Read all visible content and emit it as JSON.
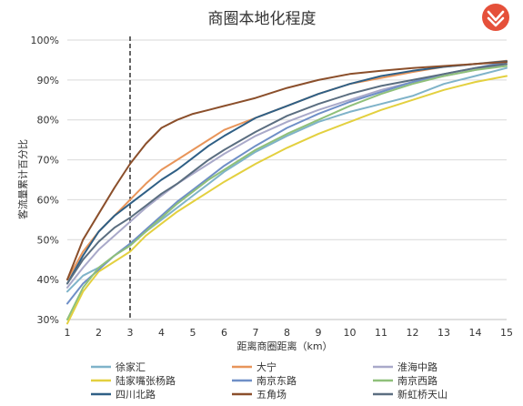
{
  "chart_data": {
    "type": "line",
    "title": "商圈本地化程度",
    "xlabel": "距离商圈距离（km）",
    "ylabel": "客流量累计百分比",
    "xlim": [
      1,
      15
    ],
    "ylim": [
      30,
      100
    ],
    "x_ticks": [
      1,
      2,
      3,
      4,
      5,
      6,
      7,
      8,
      9,
      10,
      11,
      12,
      13,
      14,
      15
    ],
    "y_ticks": [
      30,
      40,
      50,
      60,
      70,
      80,
      90,
      100
    ],
    "y_tick_labels": [
      "30%",
      "40%",
      "50%",
      "60%",
      "70%",
      "80%",
      "90%",
      "100%"
    ],
    "reference_line_x": 3,
    "grid": "horizontal",
    "legend_position": "bottom",
    "x": [
      1,
      1.5,
      2,
      2.5,
      3,
      3.5,
      4,
      4.5,
      5,
      5.5,
      6,
      7,
      8,
      9,
      10,
      11,
      12,
      13,
      14,
      15
    ],
    "series": [
      {
        "name": "徐家汇",
        "color": "#7fb3c9",
        "values": [
          37,
          41,
          43,
          46,
          49,
          52,
          55,
          58,
          61,
          64,
          67,
          72,
          76,
          79.5,
          82,
          84,
          86,
          89,
          91,
          93
        ]
      },
      {
        "name": "大宁",
        "color": "#e8955a",
        "values": [
          40,
          47,
          52,
          56,
          60,
          64,
          67.5,
          70,
          72.5,
          75,
          77.5,
          80.5,
          83.5,
          86.5,
          89,
          90.5,
          92,
          93.3,
          94,
          94.8
        ]
      },
      {
        "name": "淮海中路",
        "color": "#a9a9c9",
        "values": [
          38,
          43,
          47.5,
          51,
          54.5,
          58,
          61,
          64,
          66.5,
          69,
          71.5,
          76,
          79.5,
          82.5,
          85,
          87.5,
          89.5,
          91,
          92.5,
          94
        ]
      },
      {
        "name": "陆家嘴张杨路",
        "color": "#e3d03f",
        "values": [
          29,
          37,
          42,
          44.5,
          47,
          51,
          54,
          57,
          59.5,
          62,
          64.5,
          69,
          73,
          76.5,
          79.5,
          82.5,
          85,
          87.5,
          89.5,
          91
        ]
      },
      {
        "name": "南京东路",
        "color": "#6f8fc7",
        "values": [
          34,
          39,
          42.5,
          46,
          49,
          52.5,
          56,
          59.5,
          62.5,
          65.5,
          68.5,
          73.5,
          78,
          81.5,
          84.5,
          87,
          89.5,
          91.5,
          93,
          94.5
        ]
      },
      {
        "name": "南京西路",
        "color": "#8fc07a",
        "values": [
          30,
          38,
          43,
          46,
          48.5,
          52,
          55.5,
          59,
          62,
          65,
          67.5,
          72.5,
          76.5,
          80,
          83.5,
          86.5,
          89,
          91,
          92.5,
          93.5
        ]
      },
      {
        "name": "四川北路",
        "color": "#2f5f85",
        "values": [
          39,
          46,
          52,
          56,
          59,
          62,
          65,
          67.5,
          70.5,
          73.5,
          76,
          80.5,
          83.5,
          86.5,
          89,
          91,
          92.3,
          93.3,
          94,
          94.7
        ]
      },
      {
        "name": "五角场",
        "color": "#8b4f2b",
        "values": [
          40,
          50,
          56.5,
          63,
          69,
          74,
          78,
          80,
          81.5,
          82.5,
          83.5,
          85.5,
          88,
          90,
          91.5,
          92.3,
          93,
          93.5,
          94,
          94.5
        ]
      },
      {
        "name": "新虹桥天山",
        "color": "#5b6e80",
        "values": [
          39,
          45,
          49.5,
          53,
          55.5,
          58.5,
          61.5,
          64,
          67,
          70,
          72.5,
          77,
          81,
          84,
          86.5,
          88.5,
          90,
          91.5,
          93,
          94
        ]
      }
    ]
  },
  "logo": {
    "icon": "red-circle-logo",
    "color": "#e5503a"
  }
}
